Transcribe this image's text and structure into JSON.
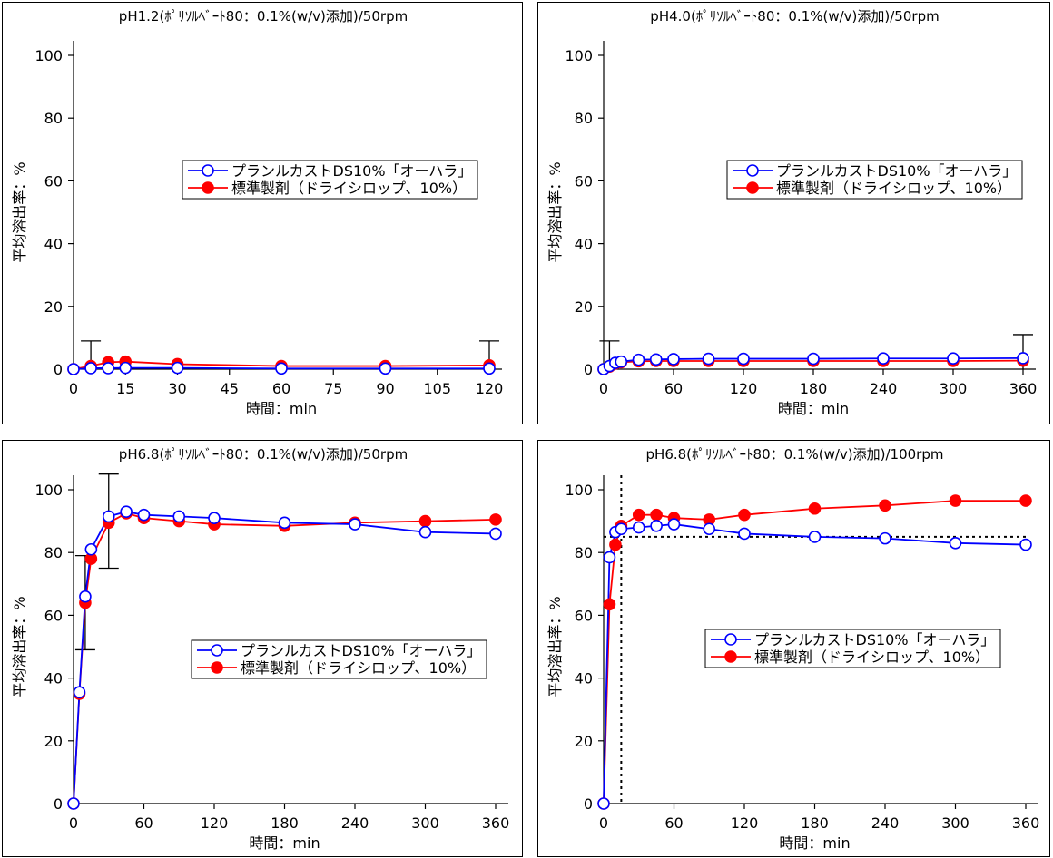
{
  "series_styles": [
    {
      "color": "#0000ff",
      "marker": "open-circle"
    },
    {
      "color": "#ff0000",
      "marker": "filled-circle"
    }
  ],
  "chart_data": [
    {
      "type": "line",
      "title": "pH1.2(ﾎﾟﾘｿﾙﾍﾞｰﾄ80：0.1%(w/v)添加)/50rpm",
      "xlabel": "時間：min",
      "ylabel": "平均溶出率：%",
      "xlim": [
        0,
        120
      ],
      "ylim": [
        0,
        100
      ],
      "xticks": [
        0,
        15,
        30,
        45,
        60,
        75,
        90,
        105,
        120
      ],
      "yticks": [
        0,
        20,
        40,
        60,
        80,
        100
      ],
      "legend": [
        "プランルカストDS10%「オーハラ」",
        "標準製剤（ドライシロップ、10%）"
      ],
      "legend_position": "center-right",
      "series": [
        {
          "name": "プランルカストDS10%「オーハラ」",
          "x": [
            0,
            5,
            10,
            15,
            30,
            60,
            90,
            120
          ],
          "y": [
            0,
            0.3,
            0.3,
            0.4,
            0.4,
            0.2,
            0.2,
            0.2
          ]
        },
        {
          "name": "標準製剤（ドライシロップ、10%）",
          "x": [
            0,
            5,
            10,
            15,
            30,
            60,
            90,
            120
          ],
          "y": [
            0,
            1.0,
            2.2,
            2.4,
            1.6,
            1.0,
            1.0,
            1.2
          ]
        }
      ],
      "error_bars": [
        {
          "x": 5,
          "low": 0,
          "high": 9
        },
        {
          "x": 120,
          "low": 0,
          "high": 9
        }
      ],
      "reference_lines": []
    },
    {
      "type": "line",
      "title": "pH4.0(ﾎﾟﾘｿﾙﾍﾞｰﾄ80：0.1%(w/v)添加)/50rpm",
      "xlabel": "時間：min",
      "ylabel": "平均溶出率：%",
      "xlim": [
        0,
        360
      ],
      "ylim": [
        0,
        100
      ],
      "xticks": [
        0,
        60,
        120,
        180,
        240,
        300,
        360
      ],
      "yticks": [
        0,
        20,
        40,
        60,
        80,
        100
      ],
      "legend": [
        "プランルカストDS10%「オーハラ」",
        "標準製剤（ドライシロップ、10%）"
      ],
      "legend_position": "center-right",
      "series": [
        {
          "name": "プランルカストDS10%「オーハラ」",
          "x": [
            0,
            5,
            10,
            15,
            30,
            45,
            60,
            90,
            120,
            180,
            240,
            300,
            360
          ],
          "y": [
            0,
            1.0,
            2.0,
            2.4,
            3.0,
            3.1,
            3.2,
            3.3,
            3.3,
            3.3,
            3.4,
            3.4,
            3.5
          ]
        },
        {
          "name": "標準製剤（ドライシロップ、10%）",
          "x": [
            0,
            5,
            10,
            15,
            30,
            45,
            60,
            90,
            120,
            180,
            240,
            300,
            360
          ],
          "y": [
            0,
            0.8,
            1.8,
            2.2,
            2.5,
            2.6,
            2.6,
            2.6,
            2.6,
            2.6,
            2.6,
            2.6,
            2.7
          ]
        }
      ],
      "error_bars": [
        {
          "x": 5,
          "low": 0,
          "high": 9
        },
        {
          "x": 360,
          "low": 0,
          "high": 11
        }
      ],
      "reference_lines": []
    },
    {
      "type": "line",
      "title": "pH6.8(ﾎﾟﾘｿﾙﾍﾞｰﾄ80：0.1%(w/v)添加)/50rpm",
      "xlabel": "時間：min",
      "ylabel": "平均溶出率：%",
      "xlim": [
        0,
        360
      ],
      "ylim": [
        0,
        100
      ],
      "xticks": [
        0,
        60,
        120,
        180,
        240,
        300,
        360
      ],
      "yticks": [
        0,
        20,
        40,
        60,
        80,
        100
      ],
      "legend": [
        "プランルカストDS10%「オーハラ」",
        "標準製剤（ドライシロップ、10%）"
      ],
      "legend_position": "center-right",
      "series": [
        {
          "name": "プランルカストDS10%「オーハラ」",
          "x": [
            0,
            5,
            10,
            15,
            30,
            45,
            60,
            90,
            120,
            180,
            240,
            300,
            360
          ],
          "y": [
            0,
            35.5,
            66,
            81,
            91.5,
            93,
            92,
            91.5,
            91,
            89.5,
            89,
            86.5,
            86
          ]
        },
        {
          "name": "標準製剤（ドライシロップ、10%）",
          "x": [
            0,
            5,
            10,
            15,
            30,
            45,
            60,
            90,
            120,
            180,
            240,
            300,
            360
          ],
          "y": [
            0,
            35,
            64,
            78,
            89.5,
            92.5,
            91,
            90,
            89,
            88.5,
            89.5,
            90,
            90.5
          ]
        }
      ],
      "error_bars": [
        {
          "x": 10,
          "low": 49,
          "high": 79
        },
        {
          "x": 30,
          "low": 75,
          "high": 105
        }
      ],
      "reference_lines": []
    },
    {
      "type": "line",
      "title": "pH6.8(ﾎﾟﾘｿﾙﾍﾞｰﾄ80：0.1%(w/v)添加)/100rpm",
      "xlabel": "時間：min",
      "ylabel": "平均溶出率：%",
      "xlim": [
        0,
        360
      ],
      "ylim": [
        0,
        100
      ],
      "xticks": [
        0,
        60,
        120,
        180,
        240,
        300,
        360
      ],
      "yticks": [
        0,
        20,
        40,
        60,
        80,
        100
      ],
      "legend": [
        "プランルカストDS10%「オーハラ」",
        "標準製剤（ドライシロップ、10%）"
      ],
      "legend_position": "center-right",
      "series": [
        {
          "name": "プランルカストDS10%「オーハラ」",
          "x": [
            0,
            5,
            10,
            15,
            30,
            45,
            60,
            90,
            120,
            180,
            240,
            300,
            360
          ],
          "y": [
            0,
            78.5,
            86.5,
            87.5,
            88,
            88.5,
            89,
            87.5,
            86,
            85,
            84.5,
            83,
            82.5
          ]
        },
        {
          "name": "標準製剤（ドライシロップ、10%）",
          "x": [
            0,
            5,
            10,
            15,
            30,
            45,
            60,
            90,
            120,
            180,
            240,
            300,
            360
          ],
          "y": [
            0,
            63.5,
            82.5,
            88.5,
            92,
            92,
            91,
            90.5,
            92,
            94,
            95,
            96.5,
            96.5
          ]
        }
      ],
      "error_bars": [],
      "reference_lines": [
        {
          "axis": "x",
          "value": 15
        },
        {
          "axis": "y",
          "value": 85
        }
      ]
    }
  ]
}
